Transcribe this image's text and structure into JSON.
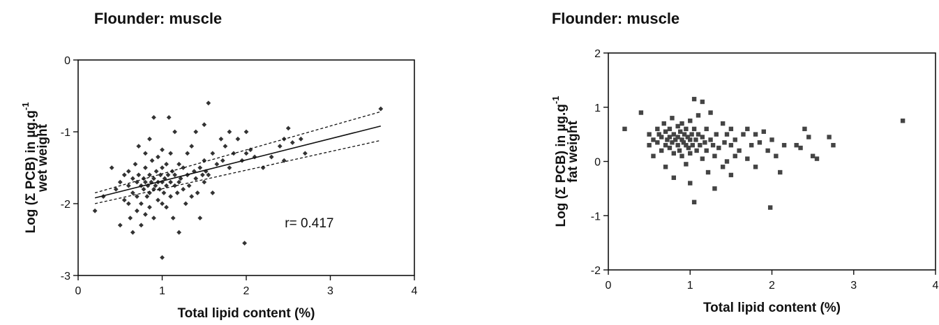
{
  "chart_data": [
    {
      "type": "scatter",
      "title": "Flounder: muscle",
      "xlabel": "Total lipid content (%)",
      "ylabel_line1": "Log (Σ PCB) in µg.g",
      "ylabel_sup": "-1",
      "ylabel_line2": "wet weight",
      "xlim": [
        0,
        4
      ],
      "ylim": [
        -3,
        0
      ],
      "x_ticks": [
        "0",
        "1",
        "2",
        "3",
        "4"
      ],
      "y_ticks": [
        "-3",
        "-2",
        "-1",
        "0"
      ],
      "marker": "diamond",
      "grid": false,
      "annotation": "r= 0.417",
      "regression": {
        "fit": [
          [
            0.2,
            -1.92
          ],
          [
            3.6,
            -0.92
          ]
        ],
        "upper_ci": [
          [
            0.2,
            -1.85
          ],
          [
            3.6,
            -0.72
          ]
        ],
        "lower_ci": [
          [
            0.2,
            -2.0
          ],
          [
            3.6,
            -1.12
          ]
        ]
      },
      "points": [
        [
          0.2,
          -2.1
        ],
        [
          0.3,
          -1.9
        ],
        [
          0.4,
          -1.5
        ],
        [
          0.45,
          -1.8
        ],
        [
          0.5,
          -1.7
        ],
        [
          0.5,
          -2.3
        ],
        [
          0.55,
          -1.95
        ],
        [
          0.55,
          -1.6
        ],
        [
          0.6,
          -2.0
        ],
        [
          0.6,
          -1.55
        ],
        [
          0.6,
          -1.75
        ],
        [
          0.62,
          -2.2
        ],
        [
          0.65,
          -1.65
        ],
        [
          0.65,
          -1.85
        ],
        [
          0.65,
          -2.4
        ],
        [
          0.68,
          -1.45
        ],
        [
          0.7,
          -1.7
        ],
        [
          0.7,
          -1.9
        ],
        [
          0.7,
          -2.1
        ],
        [
          0.72,
          -1.6
        ],
        [
          0.72,
          -1.2
        ],
        [
          0.75,
          -1.75
        ],
        [
          0.75,
          -2.0
        ],
        [
          0.75,
          -2.3
        ],
        [
          0.78,
          -1.65
        ],
        [
          0.78,
          -1.8
        ],
        [
          0.8,
          -1.7
        ],
        [
          0.8,
          -1.5
        ],
        [
          0.8,
          -1.3
        ],
        [
          0.8,
          -2.15
        ],
        [
          0.82,
          -1.9
        ],
        [
          0.83,
          -1.75
        ],
        [
          0.85,
          -1.6
        ],
        [
          0.85,
          -1.85
        ],
        [
          0.85,
          -2.05
        ],
        [
          0.85,
          -1.1
        ],
        [
          0.87,
          -1.7
        ],
        [
          0.88,
          -1.4
        ],
        [
          0.9,
          -1.8
        ],
        [
          0.9,
          -1.65
        ],
        [
          0.9,
          -2.2
        ],
        [
          0.9,
          -0.8
        ],
        [
          0.92,
          -1.75
        ],
        [
          0.93,
          -1.55
        ],
        [
          0.95,
          -1.7
        ],
        [
          0.95,
          -1.95
        ],
        [
          0.95,
          -1.35
        ],
        [
          0.97,
          -1.8
        ],
        [
          0.98,
          -1.6
        ],
        [
          1.0,
          -1.7
        ],
        [
          1.0,
          -2.0
        ],
        [
          1.0,
          -1.5
        ],
        [
          1.0,
          -1.25
        ],
        [
          1.0,
          -2.75
        ],
        [
          1.02,
          -1.85
        ],
        [
          1.03,
          -1.65
        ],
        [
          1.05,
          -1.75
        ],
        [
          1.05,
          -2.05
        ],
        [
          1.05,
          -1.45
        ],
        [
          1.07,
          -1.6
        ],
        [
          1.08,
          -0.8
        ],
        [
          1.1,
          -1.7
        ],
        [
          1.1,
          -1.9
        ],
        [
          1.1,
          -1.3
        ],
        [
          1.12,
          -1.55
        ],
        [
          1.13,
          -2.2
        ],
        [
          1.15,
          -1.75
        ],
        [
          1.15,
          -1.6
        ],
        [
          1.15,
          -1.0
        ],
        [
          1.18,
          -1.85
        ],
        [
          1.2,
          -1.7
        ],
        [
          1.2,
          -1.45
        ],
        [
          1.2,
          -2.4
        ],
        [
          1.22,
          -1.65
        ],
        [
          1.25,
          -1.8
        ],
        [
          1.25,
          -1.5
        ],
        [
          1.28,
          -2.0
        ],
        [
          1.3,
          -1.6
        ],
        [
          1.3,
          -1.3
        ],
        [
          1.32,
          -1.75
        ],
        [
          1.35,
          -1.9
        ],
        [
          1.35,
          -1.2
        ],
        [
          1.38,
          -1.55
        ],
        [
          1.4,
          -1.65
        ],
        [
          1.4,
          -1.0
        ],
        [
          1.42,
          -1.85
        ],
        [
          1.45,
          -1.5
        ],
        [
          1.45,
          -2.2
        ],
        [
          1.48,
          -1.6
        ],
        [
          1.5,
          -1.4
        ],
        [
          1.5,
          -1.7
        ],
        [
          1.5,
          -0.9
        ],
        [
          1.52,
          -1.55
        ],
        [
          1.55,
          -0.6
        ],
        [
          1.55,
          -1.6
        ],
        [
          1.6,
          -1.3
        ],
        [
          1.6,
          -1.85
        ],
        [
          1.65,
          -1.45
        ],
        [
          1.7,
          -1.1
        ],
        [
          1.72,
          -1.4
        ],
        [
          1.75,
          -1.2
        ],
        [
          1.8,
          -1.0
        ],
        [
          1.8,
          -1.5
        ],
        [
          1.85,
          -1.3
        ],
        [
          1.9,
          -1.1
        ],
        [
          1.95,
          -1.4
        ],
        [
          1.98,
          -2.55
        ],
        [
          2.0,
          -1.0
        ],
        [
          2.0,
          -1.3
        ],
        [
          2.05,
          -1.25
        ],
        [
          2.1,
          -1.35
        ],
        [
          2.2,
          -1.5
        ],
        [
          2.3,
          -1.35
        ],
        [
          2.4,
          -1.2
        ],
        [
          2.45,
          -1.1
        ],
        [
          2.45,
          -1.4
        ],
        [
          2.5,
          -0.95
        ],
        [
          2.55,
          -1.15
        ],
        [
          2.65,
          -1.1
        ],
        [
          2.7,
          -1.3
        ],
        [
          3.6,
          -0.68
        ]
      ]
    },
    {
      "type": "scatter",
      "title": "Flounder: muscle",
      "xlabel": "Total lipid content (%)",
      "ylabel_line1": "Log (Σ PCB) in µg.g",
      "ylabel_sup": "-1",
      "ylabel_line2": "fat weight",
      "xlim": [
        0,
        4
      ],
      "ylim": [
        -2,
        2
      ],
      "x_ticks": [
        "0",
        "1",
        "2",
        "3",
        "4"
      ],
      "y_ticks": [
        "-2",
        "-1",
        "0",
        "1",
        "2"
      ],
      "marker": "square",
      "grid": false,
      "points": [
        [
          0.2,
          0.6
        ],
        [
          0.4,
          0.9
        ],
        [
          0.5,
          0.5
        ],
        [
          0.5,
          0.3
        ],
        [
          0.55,
          0.4
        ],
        [
          0.55,
          0.1
        ],
        [
          0.6,
          0.6
        ],
        [
          0.6,
          0.35
        ],
        [
          0.62,
          0.5
        ],
        [
          0.65,
          0.2
        ],
        [
          0.65,
          0.45
        ],
        [
          0.68,
          0.7
        ],
        [
          0.7,
          0.3
        ],
        [
          0.7,
          0.55
        ],
        [
          0.7,
          -0.1
        ],
        [
          0.72,
          0.4
        ],
        [
          0.75,
          0.6
        ],
        [
          0.75,
          0.25
        ],
        [
          0.75,
          0.45
        ],
        [
          0.78,
          0.8
        ],
        [
          0.78,
          0.35
        ],
        [
          0.8,
          0.5
        ],
        [
          0.8,
          0.15
        ],
        [
          0.8,
          -0.3
        ],
        [
          0.82,
          0.4
        ],
        [
          0.85,
          0.65
        ],
        [
          0.85,
          0.3
        ],
        [
          0.85,
          0.45
        ],
        [
          0.87,
          0.2
        ],
        [
          0.88,
          0.55
        ],
        [
          0.9,
          0.4
        ],
        [
          0.9,
          0.7
        ],
        [
          0.9,
          0.1
        ],
        [
          0.92,
          0.35
        ],
        [
          0.93,
          0.5
        ],
        [
          0.95,
          0.3
        ],
        [
          0.95,
          0.6
        ],
        [
          0.95,
          -0.05
        ],
        [
          0.97,
          0.45
        ],
        [
          0.98,
          0.25
        ],
        [
          1.0,
          0.4
        ],
        [
          1.0,
          0.75
        ],
        [
          1.0,
          0.15
        ],
        [
          1.0,
          -0.4
        ],
        [
          1.02,
          0.5
        ],
        [
          1.03,
          0.3
        ],
        [
          1.05,
          0.6
        ],
        [
          1.05,
          1.15
        ],
        [
          1.05,
          -0.75
        ],
        [
          1.07,
          0.4
        ],
        [
          1.08,
          0.2
        ],
        [
          1.1,
          0.5
        ],
        [
          1.1,
          0.85
        ],
        [
          1.12,
          0.3
        ],
        [
          1.15,
          0.45
        ],
        [
          1.15,
          0.05
        ],
        [
          1.15,
          1.1
        ],
        [
          1.18,
          0.35
        ],
        [
          1.2,
          0.6
        ],
        [
          1.2,
          0.2
        ],
        [
          1.22,
          -0.2
        ],
        [
          1.25,
          0.4
        ],
        [
          1.25,
          0.9
        ],
        [
          1.28,
          0.3
        ],
        [
          1.3,
          0.1
        ],
        [
          1.3,
          -0.5
        ],
        [
          1.32,
          0.5
        ],
        [
          1.35,
          0.25
        ],
        [
          1.4,
          0.7
        ],
        [
          1.4,
          -0.1
        ],
        [
          1.42,
          0.35
        ],
        [
          1.45,
          0.5
        ],
        [
          1.45,
          0.0
        ],
        [
          1.5,
          0.3
        ],
        [
          1.5,
          0.6
        ],
        [
          1.5,
          -0.25
        ],
        [
          1.55,
          0.4
        ],
        [
          1.55,
          0.1
        ],
        [
          1.6,
          0.2
        ],
        [
          1.65,
          0.5
        ],
        [
          1.7,
          0.6
        ],
        [
          1.7,
          0.05
        ],
        [
          1.75,
          0.3
        ],
        [
          1.8,
          0.5
        ],
        [
          1.8,
          -0.1
        ],
        [
          1.85,
          0.35
        ],
        [
          1.9,
          0.55
        ],
        [
          1.95,
          0.2
        ],
        [
          1.98,
          -0.85
        ],
        [
          2.0,
          0.4
        ],
        [
          2.05,
          0.1
        ],
        [
          2.1,
          -0.2
        ],
        [
          2.15,
          0.3
        ],
        [
          2.3,
          0.3
        ],
        [
          2.35,
          0.25
        ],
        [
          2.4,
          0.6
        ],
        [
          2.45,
          0.45
        ],
        [
          2.5,
          0.1
        ],
        [
          2.55,
          0.05
        ],
        [
          2.7,
          0.45
        ],
        [
          2.75,
          0.3
        ],
        [
          3.6,
          0.75
        ]
      ]
    }
  ]
}
